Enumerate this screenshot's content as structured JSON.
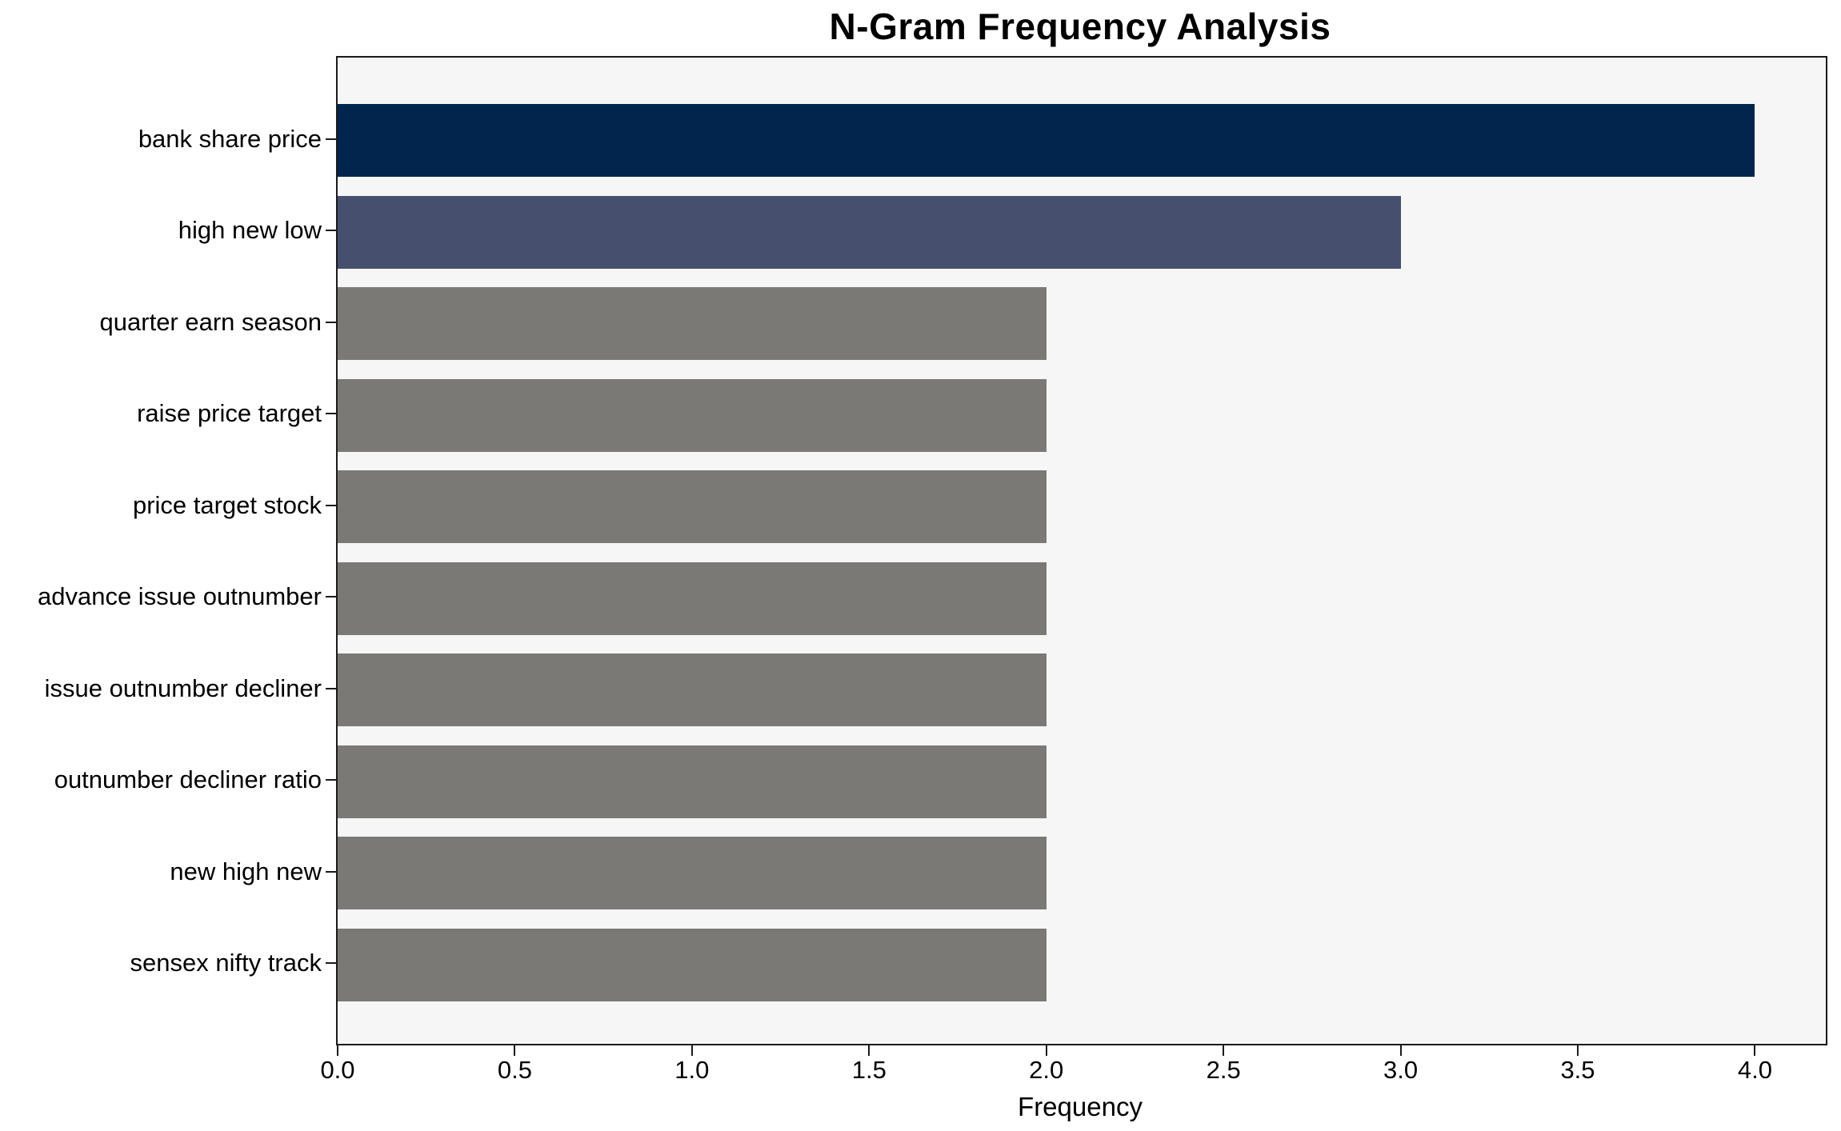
{
  "chart_data": {
    "type": "bar",
    "orientation": "horizontal",
    "title": "N-Gram Frequency Analysis",
    "xlabel": "Frequency",
    "ylabel": "",
    "categories": [
      "bank share price",
      "high new low",
      "quarter earn season",
      "raise price target",
      "price target stock",
      "advance issue outnumber",
      "issue outnumber decliner",
      "outnumber decliner ratio",
      "new high new",
      "sensex nifty track"
    ],
    "values": [
      4,
      3,
      2,
      2,
      2,
      2,
      2,
      2,
      2,
      2
    ],
    "bar_colors": [
      "#02254d",
      "#46506e",
      "#7a7976",
      "#7a7976",
      "#7a7976",
      "#7a7976",
      "#7a7976",
      "#7a7976",
      "#7a7976",
      "#7a7976"
    ],
    "xlim": [
      0,
      4.2
    ],
    "x_ticks": [
      "0.0",
      "0.5",
      "1.0",
      "1.5",
      "2.0",
      "2.5",
      "3.0",
      "3.5",
      "4.0"
    ],
    "x_tick_values": [
      0,
      0.5,
      1.0,
      1.5,
      2.0,
      2.5,
      3.0,
      3.5,
      4.0
    ],
    "grid": false,
    "legend": null,
    "colors": {
      "plot_background": "#f6f6f7",
      "figure_background": "#ffffff",
      "spine": "#1a1a1a",
      "text": "#000000"
    }
  }
}
